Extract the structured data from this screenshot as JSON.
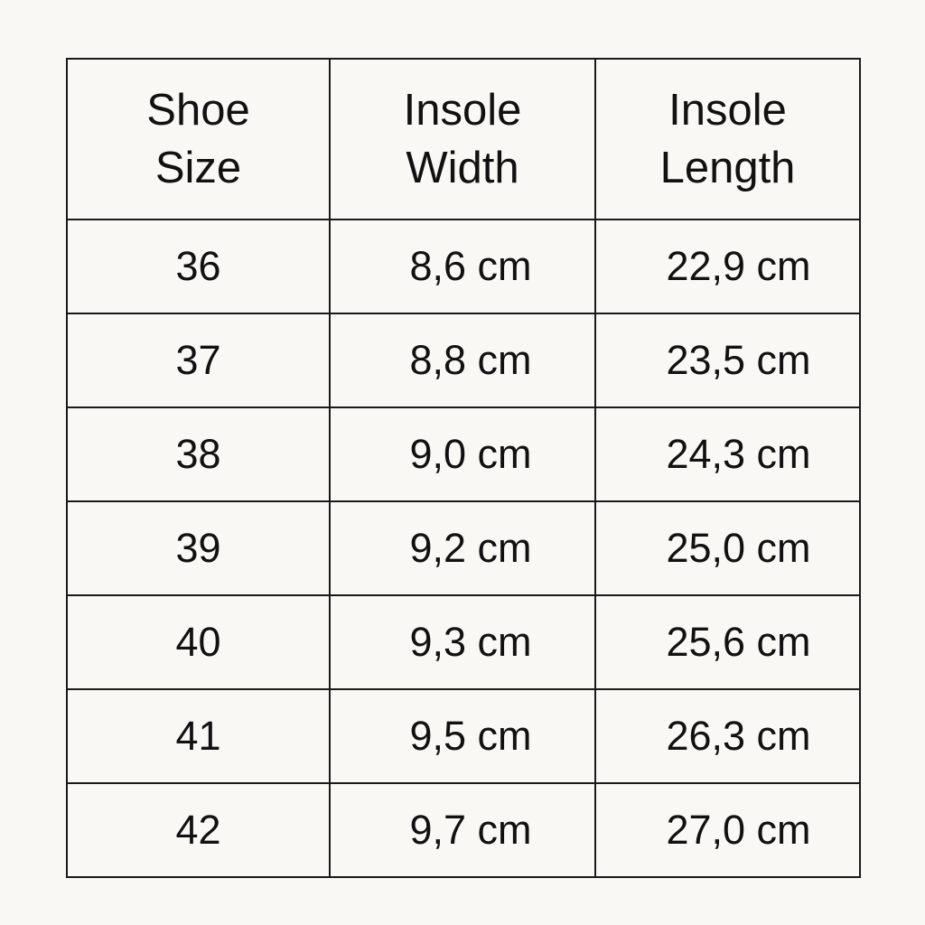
{
  "table": {
    "headers": [
      [
        "Shoe",
        "Size"
      ],
      [
        "Insole",
        "Width"
      ],
      [
        "Insole",
        "Length"
      ]
    ],
    "rows": [
      [
        "36",
        "8,6 cm",
        "22,9 cm"
      ],
      [
        "37",
        "8,8 cm",
        "23,5 cm"
      ],
      [
        "38",
        "9,0 cm",
        "24,3 cm"
      ],
      [
        "39",
        "9,2 cm",
        "25,0 cm"
      ],
      [
        "40",
        "9,3 cm",
        "25,6 cm"
      ],
      [
        "41",
        "9,5 cm",
        "26,3 cm"
      ],
      [
        "42",
        "9,7 cm",
        "27,0 cm"
      ]
    ]
  },
  "colors": {
    "background": "#faf8f4",
    "border": "#1a1a1a",
    "text": "#111111"
  }
}
